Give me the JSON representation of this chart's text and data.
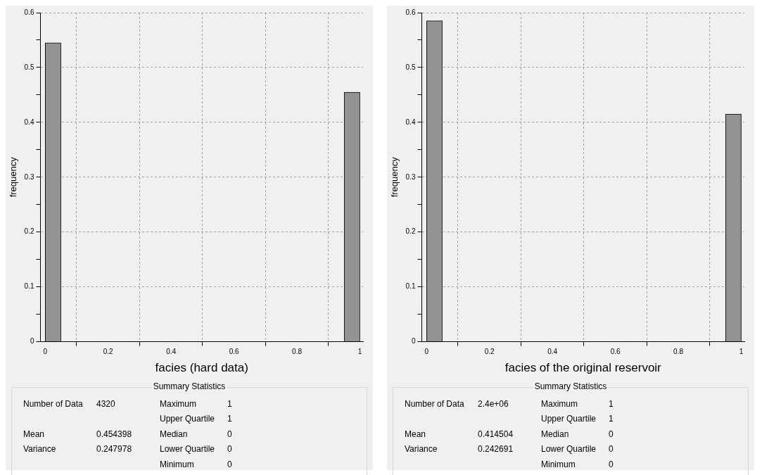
{
  "chart_data": [
    {
      "type": "histogram",
      "xlabel": "facies (hard data)",
      "ylabel": "frequency",
      "bins": [
        0,
        0.05,
        0.1,
        0.15,
        0.2,
        0.25,
        0.3,
        0.35,
        0.4,
        0.45,
        0.5,
        0.55,
        0.6,
        0.65,
        0.7,
        0.75,
        0.8,
        0.85,
        0.9,
        0.95,
        1
      ],
      "values": [
        0.545,
        0,
        0,
        0,
        0,
        0,
        0,
        0,
        0,
        0,
        0,
        0,
        0,
        0,
        0,
        0,
        0,
        0,
        0,
        0.455
      ],
      "color": "#939393",
      "xlim": [
        -0.015,
        1.01
      ],
      "xticks": [
        0,
        0.2,
        0.4,
        0.6,
        0.8,
        1
      ],
      "ylim": [
        0,
        0.6
      ],
      "yticks": [
        0,
        {
          "value": 0.05,
          "label": null
        },
        0.1,
        {
          "value": 0.15,
          "label": null
        },
        0.2,
        {
          "value": 0.25,
          "label": null
        },
        0.3,
        {
          "value": 0.35,
          "label": null
        },
        0.4,
        {
          "value": 0.45,
          "label": null
        },
        0.5,
        {
          "value": 0.55,
          "label": null
        },
        0.6
      ],
      "grid": true,
      "annotations": [
        "Summary Statistics",
        "Number of Data",
        "4320",
        "Mean",
        "0.454398",
        "Variance",
        "0.247978",
        "Maximum",
        "1",
        "Upper Quartile",
        "1",
        "Median",
        "0",
        "Lower Quartile",
        "0",
        "Minimum",
        "0"
      ]
    },
    {
      "type": "histogram",
      "xlabel": "facies of the original reservoir",
      "ylabel": "frequency",
      "bins": [
        0,
        0.05,
        0.1,
        0.15,
        0.2,
        0.25,
        0.3,
        0.35,
        0.4,
        0.45,
        0.5,
        0.55,
        0.6,
        0.65,
        0.7,
        0.75,
        0.8,
        0.85,
        0.9,
        0.95,
        1
      ],
      "values": [
        0.585,
        0,
        0,
        0,
        0,
        0,
        0,
        0,
        0,
        0,
        0,
        0,
        0,
        0,
        0,
        0,
        0,
        0,
        0,
        0.415
      ],
      "color": "#939393",
      "xlim": [
        -0.015,
        1.01
      ],
      "xticks": [
        0,
        0.2,
        0.4,
        0.6,
        0.8,
        1
      ],
      "ylim": [
        0,
        0.6
      ],
      "yticks": [
        0,
        {
          "value": 0.05,
          "label": null
        },
        0.1,
        {
          "value": 0.15,
          "label": null
        },
        0.2,
        {
          "value": 0.25,
          "label": null
        },
        0.3,
        {
          "value": 0.35,
          "label": null
        },
        0.4,
        {
          "value": 0.45,
          "label": null
        },
        0.5,
        {
          "value": 0.55,
          "label": null
        },
        0.6
      ],
      "grid": true,
      "annotations": [
        "Summary Statistics",
        "Number of Data",
        "2.4e+06",
        "Mean",
        "0.414504",
        "Variance",
        "0.242691",
        "Maximum",
        "1",
        "Upper Quartile",
        "1",
        "Median",
        "0",
        "Lower Quartile",
        "0",
        "Minimum",
        "0"
      ]
    }
  ]
}
